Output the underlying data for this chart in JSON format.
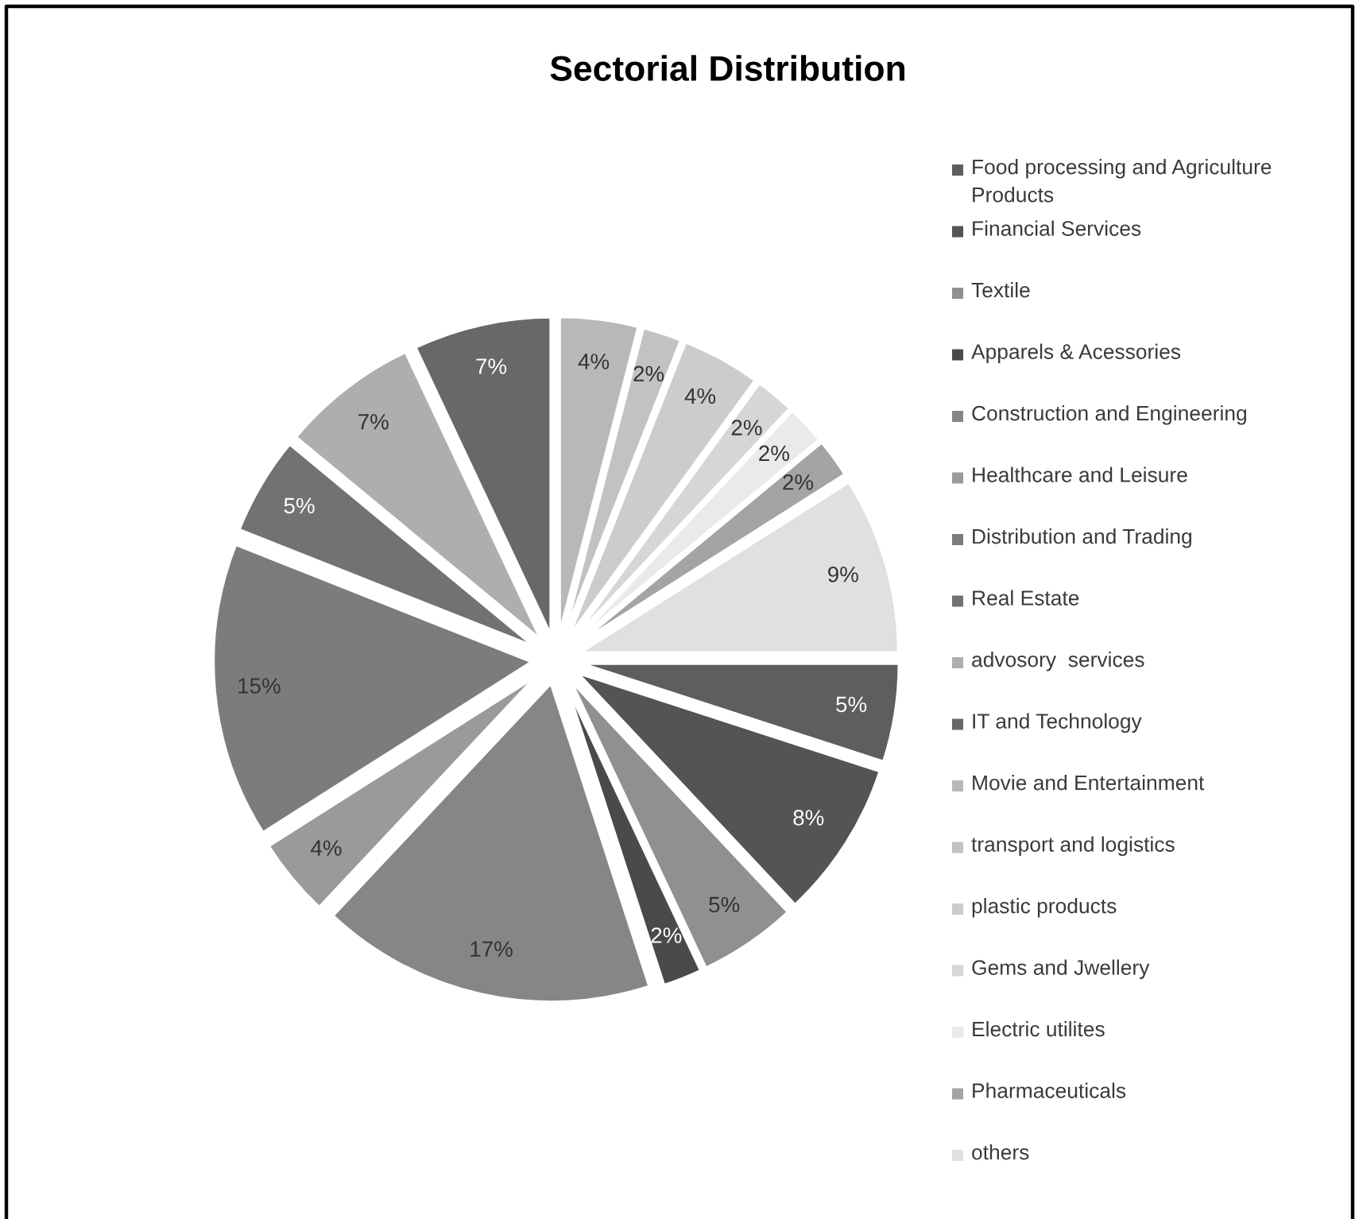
{
  "chart_data": {
    "type": "pie",
    "title": "Sectorial Distribution",
    "categories": [
      "Food processing and Agriculture Products",
      "Financial Services",
      "Textile",
      "Apparels & Acessories",
      "Construction and Engineering",
      "Healthcare and Leisure",
      "Distribution and Trading",
      "Real Estate",
      "advosory  services",
      "IT and Technology",
      "Movie and Entertainment",
      "transport and logistics",
      "plastic products",
      "Gems and Jwellery",
      "Electric utilites",
      "Pharmaceuticals",
      "others"
    ],
    "values": [
      5,
      8,
      5,
      2,
      17,
      4,
      15,
      5,
      7,
      7,
      4,
      2,
      4,
      2,
      2,
      2,
      9
    ],
    "value_labels": [
      "5%",
      "8%",
      "5%",
      "2%",
      "17%",
      "4%",
      "15%",
      "5%",
      "7%",
      "7%",
      "4%",
      "2%",
      "4%",
      "2%",
      "2%",
      "2%",
      "9%"
    ],
    "colors": [
      "#5e5e5e",
      "#545454",
      "#909090",
      "#4a4a4a",
      "#868686",
      "#9a9a9a",
      "#7c7c7c",
      "#727272",
      "#aeaeae",
      "#686868",
      "#b8b8b8",
      "#c2c2c2",
      "#cccccc",
      "#d6d6d6",
      "#eaeaea",
      "#a4a4a4",
      "#e0e0e0"
    ],
    "legend": "right"
  }
}
